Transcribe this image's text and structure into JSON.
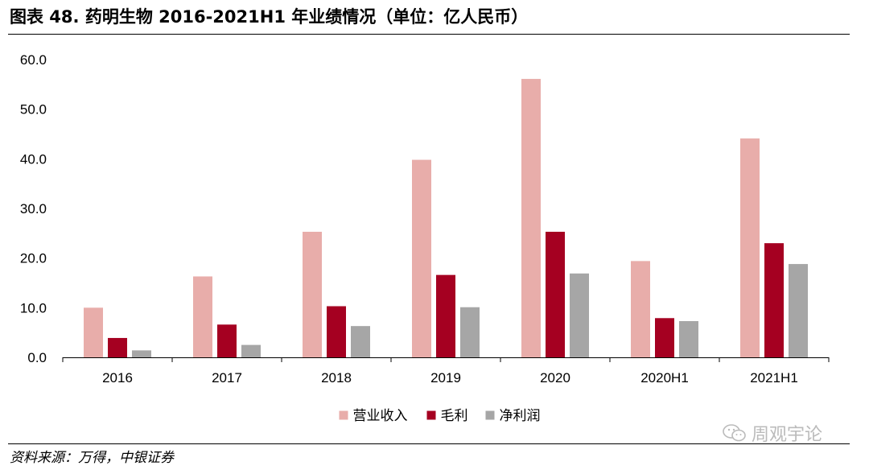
{
  "header": {
    "title": "图表 48. 药明生物 2016-2021H1 年业绩情况（单位：亿人民币）"
  },
  "footer": {
    "source": "资料来源：万得，中银证券",
    "watermark": "周观宇论",
    "watermark_icon": "wechat-icon"
  },
  "chart_data": {
    "type": "bar",
    "categories": [
      "2016",
      "2017",
      "2018",
      "2019",
      "2020",
      "2020H1",
      "2021H1"
    ],
    "series": [
      {
        "name": "营业收入",
        "color": "#e8adaa",
        "values": [
          10.0,
          16.3,
          25.3,
          39.8,
          56.1,
          19.4,
          44.1
        ]
      },
      {
        "name": "毛利",
        "color": "#a50021",
        "values": [
          3.9,
          6.6,
          10.3,
          16.6,
          25.3,
          7.9,
          23.0
        ]
      },
      {
        "name": "净利润",
        "color": "#a6a6a6",
        "values": [
          1.4,
          2.5,
          6.3,
          10.1,
          16.9,
          7.3,
          18.8
        ]
      }
    ],
    "yticks": [
      "0.0",
      "10.0",
      "20.0",
      "30.0",
      "40.0",
      "50.0",
      "60.0"
    ],
    "ylim": [
      0,
      60
    ],
    "title": "",
    "xlabel": "",
    "ylabel": "",
    "grid": false,
    "legend_position": "bottom-center"
  }
}
